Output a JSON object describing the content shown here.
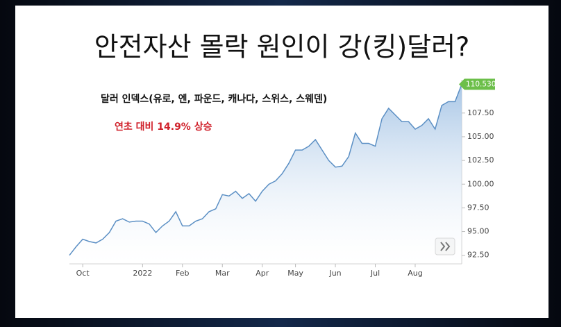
{
  "chart_data": {
    "type": "line",
    "title": "안전자산 몰락 원인이 강(킹)달러?",
    "subtitle": "달러 인덱스(유로, 엔, 파운드, 캐나다, 스위스, 스웨덴)",
    "annotation": "연초 대비 14.9% 상승",
    "categories": [
      null,
      null,
      "Oct",
      null,
      null,
      null,
      null,
      null,
      null,
      null,
      null,
      "2022",
      null,
      null,
      null,
      null,
      null,
      "Feb",
      null,
      null,
      null,
      null,
      null,
      "Mar",
      null,
      null,
      null,
      null,
      null,
      "Apr",
      null,
      null,
      null,
      null,
      "May",
      null,
      null,
      null,
      null,
      null,
      "Jun",
      null,
      null,
      null,
      null,
      null,
      "Jul",
      null,
      null,
      null,
      null,
      null,
      "Aug",
      null,
      null,
      null,
      null,
      null,
      null,
      null
    ],
    "series": [
      {
        "color": "#5b8fc4",
        "values": [
          92.5,
          93.4,
          94.2,
          93.95,
          93.8,
          94.2,
          94.9,
          96.1,
          96.35,
          96.0,
          96.1,
          96.1,
          95.8,
          94.9,
          95.6,
          96.1,
          97.1,
          95.6,
          95.6,
          96.1,
          96.35,
          97.1,
          97.4,
          98.9,
          98.75,
          99.25,
          98.5,
          99.0,
          98.2,
          99.25,
          100.0,
          100.35,
          101.1,
          102.2,
          103.6,
          103.6,
          104.0,
          104.7,
          103.6,
          102.5,
          101.8,
          101.9,
          102.9,
          105.4,
          104.3,
          104.3,
          104.0,
          106.9,
          108.0,
          107.3,
          106.6,
          106.6,
          105.8,
          106.2,
          106.9,
          105.8,
          108.3,
          108.7,
          108.7,
          110.53
        ],
        "value_labels": [
          null,
          null,
          null,
          null,
          null,
          null,
          null,
          null,
          null,
          null,
          null,
          null,
          null,
          null,
          null,
          null,
          null,
          null,
          null,
          null,
          null,
          null,
          null,
          null,
          null,
          null,
          null,
          null,
          null,
          null,
          null,
          null,
          null,
          null,
          null,
          null,
          null,
          null,
          null,
          null,
          null,
          null,
          null,
          null,
          null,
          null,
          null,
          null,
          null,
          null,
          null,
          null,
          null,
          null,
          null,
          null,
          null,
          null,
          null,
          "110.530"
        ]
      }
    ],
    "ylim": [
      91.6,
      111
    ],
    "yticks": [
      {
        "value": 92.5,
        "label": "92.50"
      },
      {
        "value": 95,
        "label": "95.00"
      },
      {
        "value": 97.5,
        "label": "97.50"
      },
      {
        "value": 100,
        "label": "100.00"
      },
      {
        "value": 102.5,
        "label": "102.50"
      },
      {
        "value": 105,
        "label": "105.00"
      },
      {
        "value": 107.5,
        "label": "107.50"
      }
    ],
    "label_color": "#6cbf4a"
  }
}
